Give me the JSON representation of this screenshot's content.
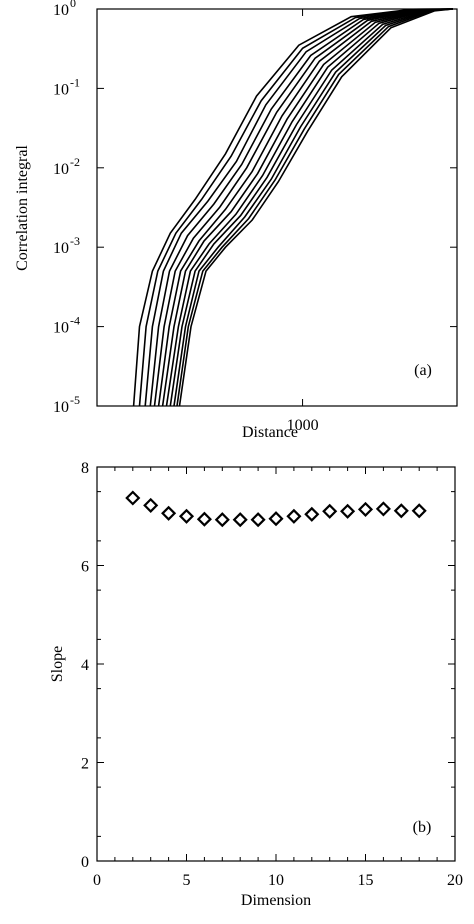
{
  "chart_data": [
    {
      "type": "line",
      "panel_label": "(a)",
      "xlabel": "Distance",
      "ylabel": "Correlation integral",
      "x_scale": "log",
      "y_scale": "log",
      "xlim": [
        330,
        2300
      ],
      "ylim": [
        1e-05,
        1
      ],
      "x_tick_labels": [
        {
          "value": 1000,
          "label": "1000"
        }
      ],
      "y_tick_labels": [
        {
          "value": 1,
          "base": "10",
          "exp": "0"
        },
        {
          "value": 0.1,
          "base": "10",
          "exp": "-1"
        },
        {
          "value": 0.01,
          "base": "10",
          "exp": "-2"
        },
        {
          "value": 0.001,
          "base": "10",
          "exp": "-3"
        },
        {
          "value": 0.0001,
          "base": "10",
          "exp": "-4"
        },
        {
          "value": 1e-05,
          "base": "10",
          "exp": "-5"
        }
      ],
      "grid": false,
      "line_color": "#000000",
      "series": [
        {
          "values": [
            [
              402,
              1e-05
            ],
            [
              415,
              0.0001
            ],
            [
              445,
              0.0005
            ],
            [
              490,
              0.0015
            ],
            [
              560,
              0.004
            ],
            [
              660,
              0.015
            ],
            [
              780,
              0.08
            ],
            [
              980,
              0.35
            ],
            [
              1300,
              0.8
            ],
            [
              1800,
              0.99
            ],
            [
              2250,
              1
            ]
          ]
        },
        {
          "values": [
            [
              415,
              1e-05
            ],
            [
              430,
              0.0001
            ],
            [
              458,
              0.0005
            ],
            [
              505,
              0.0015
            ],
            [
              580,
              0.004
            ],
            [
              680,
              0.014
            ],
            [
              800,
              0.07
            ],
            [
              1000,
              0.32
            ],
            [
              1330,
              0.78
            ],
            [
              1830,
              0.99
            ],
            [
              2250,
              1
            ]
          ]
        },
        {
          "values": [
            [
              428,
              1e-05
            ],
            [
              445,
              0.0001
            ],
            [
              472,
              0.0005
            ],
            [
              520,
              0.0015
            ],
            [
              600,
              0.0038
            ],
            [
              700,
              0.012
            ],
            [
              820,
              0.062
            ],
            [
              1020,
              0.29
            ],
            [
              1360,
              0.76
            ],
            [
              1860,
              0.98
            ],
            [
              2250,
              1
            ]
          ]
        },
        {
          "values": [
            [
              440,
              1e-05
            ],
            [
              460,
              0.0001
            ],
            [
              488,
              0.0005
            ],
            [
              538,
              0.0014
            ],
            [
              620,
              0.0035
            ],
            [
              720,
              0.011
            ],
            [
              845,
              0.055
            ],
            [
              1045,
              0.26
            ],
            [
              1390,
              0.74
            ],
            [
              1880,
              0.98
            ],
            [
              2250,
              1
            ]
          ]
        },
        {
          "values": [
            [
              450,
              1e-05
            ],
            [
              474,
              0.0001
            ],
            [
              503,
              0.0005
            ],
            [
              555,
              0.0013
            ],
            [
              640,
              0.0032
            ],
            [
              740,
              0.01
            ],
            [
              870,
              0.05
            ],
            [
              1070,
              0.24
            ],
            [
              1420,
              0.72
            ],
            [
              1900,
              0.98
            ],
            [
              2250,
              1
            ]
          ]
        },
        {
          "values": [
            [
              460,
              1e-05
            ],
            [
              487,
              0.0001
            ],
            [
              518,
              0.0005
            ],
            [
              572,
              0.0012
            ],
            [
              660,
              0.003
            ],
            [
              762,
              0.009
            ],
            [
              895,
              0.045
            ],
            [
              1095,
              0.22
            ],
            [
              1450,
              0.7
            ],
            [
              1920,
              0.97
            ],
            [
              2250,
              1
            ]
          ]
        },
        {
          "values": [
            [
              470,
              1e-05
            ],
            [
              500,
              0.0001
            ],
            [
              532,
              0.0005
            ],
            [
              588,
              0.0012
            ],
            [
              680,
              0.0028
            ],
            [
              785,
              0.0085
            ],
            [
              920,
              0.041
            ],
            [
              1120,
              0.2
            ],
            [
              1480,
              0.68
            ],
            [
              1940,
              0.97
            ],
            [
              2250,
              1
            ]
          ]
        },
        {
          "values": [
            [
              480,
              1e-05
            ],
            [
              512,
              0.0001
            ],
            [
              546,
              0.0005
            ],
            [
              604,
              0.0011
            ],
            [
              698,
              0.0026
            ],
            [
              806,
              0.008
            ],
            [
              945,
              0.038
            ],
            [
              1145,
              0.185
            ],
            [
              1510,
              0.66
            ],
            [
              1960,
              0.97
            ],
            [
              2250,
              1
            ]
          ]
        },
        {
          "values": [
            [
              490,
              1e-05
            ],
            [
              522,
              0.0001
            ],
            [
              560,
              0.0005
            ],
            [
              620,
              0.0011
            ],
            [
              716,
              0.0025
            ],
            [
              826,
              0.0076
            ],
            [
              968,
              0.035
            ],
            [
              1170,
              0.17
            ],
            [
              1540,
              0.64
            ],
            [
              1980,
              0.96
            ],
            [
              2250,
              1
            ]
          ]
        },
        {
          "values": [
            [
              500,
              1e-05
            ],
            [
              532,
              0.0001
            ],
            [
              572,
              0.0005
            ],
            [
              634,
              0.001
            ],
            [
              732,
              0.0024
            ],
            [
              845,
              0.0072
            ],
            [
              990,
              0.033
            ],
            [
              1195,
              0.16
            ],
            [
              1565,
              0.62
            ],
            [
              2000,
              0.96
            ],
            [
              2250,
              1
            ]
          ]
        },
        {
          "values": [
            [
              508,
              1e-05
            ],
            [
              540,
              0.0001
            ],
            [
              584,
              0.0005
            ],
            [
              648,
              0.001
            ],
            [
              748,
              0.0023
            ],
            [
              862,
              0.007
            ],
            [
              1010,
              0.031
            ],
            [
              1215,
              0.15
            ],
            [
              1590,
              0.6
            ],
            [
              2020,
              0.96
            ],
            [
              2250,
              1
            ]
          ]
        },
        {
          "values": [
            [
              515,
              1e-05
            ],
            [
              548,
              0.0001
            ],
            [
              594,
              0.0005
            ],
            [
              660,
              0.001
            ],
            [
              762,
              0.0022
            ],
            [
              878,
              0.0067
            ],
            [
              1028,
              0.029
            ],
            [
              1235,
              0.14
            ],
            [
              1610,
              0.58
            ],
            [
              2040,
              0.95
            ],
            [
              2250,
              1
            ]
          ]
        }
      ]
    },
    {
      "type": "scatter",
      "panel_label": "(b)",
      "xlabel": "Dimension",
      "ylabel": "Slope",
      "xlim": [
        0,
        20
      ],
      "ylim": [
        0,
        8
      ],
      "x_ticks": [
        0,
        5,
        10,
        15,
        20
      ],
      "y_ticks": [
        0,
        2,
        4,
        6,
        8
      ],
      "grid": false,
      "marker": "diamond-open",
      "marker_color": "#000000",
      "x": [
        2,
        3,
        4,
        5,
        6,
        7,
        8,
        9,
        10,
        11,
        12,
        13,
        14,
        15,
        16,
        17,
        18
      ],
      "y": [
        7.37,
        7.22,
        7.06,
        7.0,
        6.94,
        6.93,
        6.93,
        6.93,
        6.95,
        7.0,
        7.04,
        7.1,
        7.1,
        7.14,
        7.15,
        7.11,
        7.11
      ]
    }
  ]
}
